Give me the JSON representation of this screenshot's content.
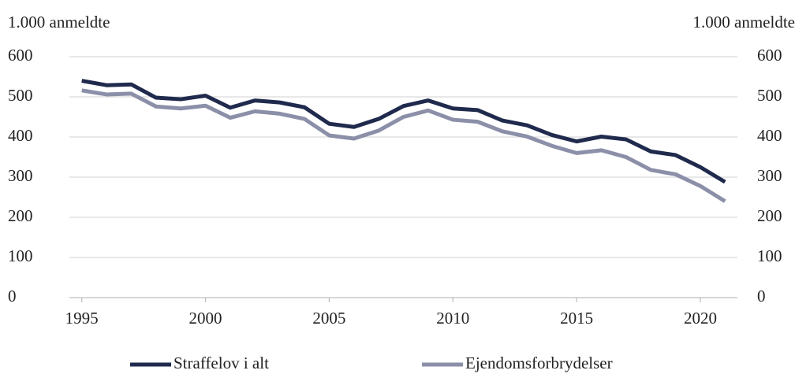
{
  "chart_data": {
    "type": "line",
    "ylabel": "1.000 anmeldte",
    "y2label": "1.000 anmeldte",
    "x": [
      1995,
      1996,
      1997,
      1998,
      1999,
      2000,
      2001,
      2002,
      2003,
      2004,
      2005,
      2006,
      2007,
      2008,
      2009,
      2010,
      2011,
      2012,
      2013,
      2014,
      2015,
      2016,
      2017,
      2018,
      2019,
      2020,
      2021
    ],
    "series": [
      {
        "name": "Straffelov i alt",
        "color": "#1f2a4d",
        "values": [
          540,
          529,
          531,
          498,
          494,
          503,
          473,
          491,
          486,
          474,
          433,
          425,
          445,
          477,
          491,
          471,
          467,
          441,
          429,
          405,
          389,
          401,
          394,
          364,
          355,
          325,
          288
        ]
      },
      {
        "name": "Ejendomsforbrydelser",
        "color": "#8b8fa8",
        "values": [
          516,
          506,
          508,
          476,
          471,
          478,
          448,
          464,
          458,
          445,
          404,
          396,
          416,
          450,
          466,
          443,
          438,
          414,
          401,
          378,
          360,
          367,
          350,
          318,
          307,
          278,
          240
        ]
      }
    ],
    "xlim": [
      1994.5,
      2021.5
    ],
    "xticks": [
      1995,
      2000,
      2005,
      2010,
      2015,
      2020
    ],
    "ylim": [
      0,
      600
    ],
    "yticks": [
      0,
      100,
      200,
      300,
      400,
      500,
      600
    ],
    "y2lim": [
      0,
      600
    ],
    "y2ticks": [
      0,
      100,
      200,
      300,
      400,
      500,
      600
    ],
    "grid": true
  }
}
